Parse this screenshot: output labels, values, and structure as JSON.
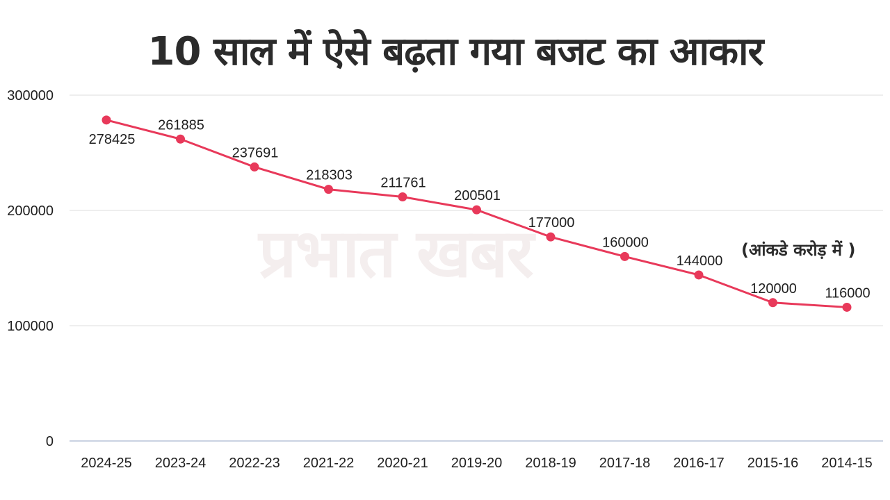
{
  "header": {
    "title": "10 साल में ऐसे बढ़ता गया बजट का आकार"
  },
  "note": "(आंकडे करोड़ में )",
  "watermark": "प्रभात खबर",
  "colors": {
    "series": "#e8395a",
    "grid": "#dcdcdc",
    "text": "#1f1f1f"
  },
  "chart_data": {
    "type": "line",
    "title": "10 साल में ऐसे बढ़ता गया बजट का आकार",
    "xlabel": "",
    "ylabel": "",
    "categories": [
      "2024-25",
      "2023-24",
      "2022-23",
      "2021-22",
      "2020-21",
      "2019-20",
      "2018-19",
      "2017-18",
      "2016-17",
      "2015-16",
      "2014-15"
    ],
    "series": [
      {
        "values": [
          278425,
          261885,
          237691,
          218303,
          211761,
          200501,
          177000,
          160000,
          144000,
          120000,
          116000
        ],
        "data_labels": [
          "278425",
          "261885",
          "237691",
          "218303",
          "211761",
          "200501",
          "177000",
          "160000",
          "144000",
          "120000",
          "116000"
        ]
      }
    ],
    "y_ticks": [
      0,
      100000,
      200000,
      300000
    ],
    "y_tick_labels": [
      "0",
      "100000",
      "200000",
      "300000"
    ],
    "ylim": [
      0,
      300000
    ],
    "grid": true,
    "legend": "none",
    "annotation": "(आंकडे करोड़ में )"
  }
}
